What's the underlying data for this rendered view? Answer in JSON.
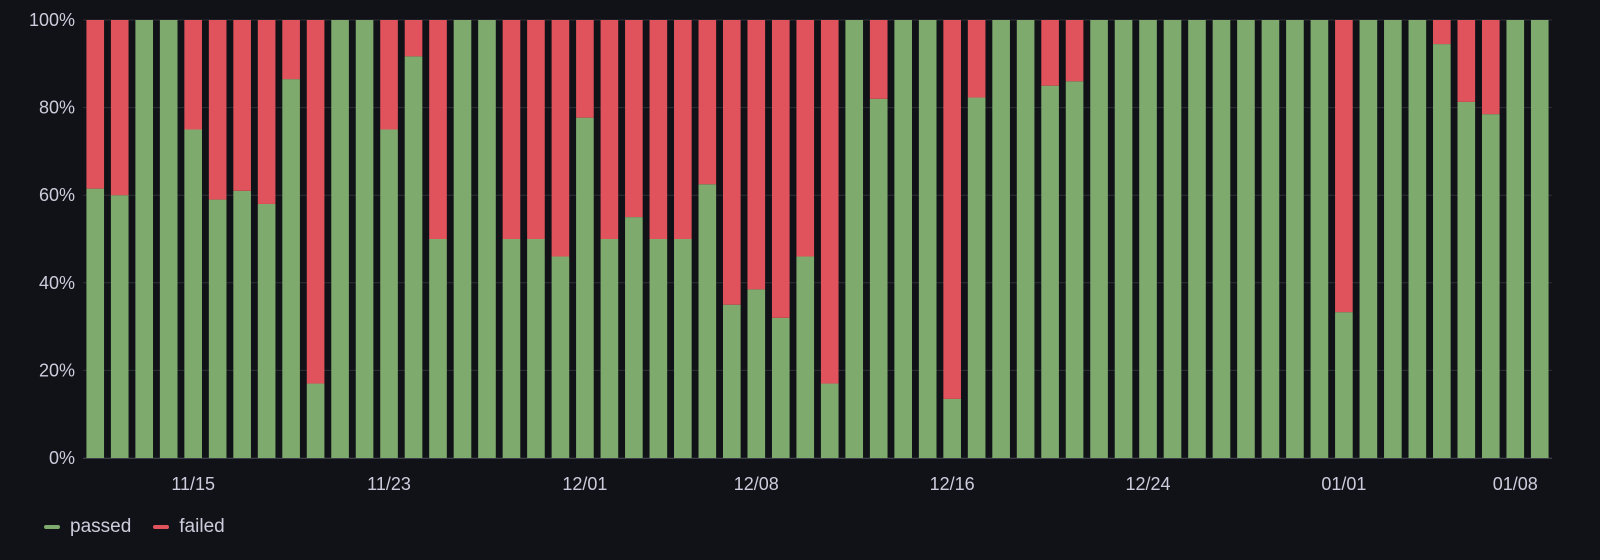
{
  "chart_data": {
    "type": "bar",
    "stacked": true,
    "ylim": [
      0,
      100
    ],
    "y_tick_labels": [
      "0%",
      "20%",
      "40%",
      "60%",
      "80%",
      "100%"
    ],
    "y_tick_values": [
      0,
      20,
      40,
      60,
      80,
      100
    ],
    "x_tick_labels": [
      "11/15",
      "11/23",
      "12/01",
      "12/08",
      "12/16",
      "12/24",
      "01/01",
      "01/08"
    ],
    "x_tick_at_bar": [
      4,
      12,
      20,
      27,
      35,
      43,
      51,
      58
    ],
    "grid": true,
    "legend_placement": "bottom-left",
    "series": [
      {
        "name": "passed",
        "color": "#7eaa6e",
        "values": [
          61.5,
          60,
          100,
          100,
          75,
          59,
          61,
          58,
          86.5,
          17,
          100,
          100,
          75,
          91.7,
          50,
          100,
          100,
          50,
          50,
          46,
          77.7,
          50,
          55,
          50,
          50,
          62.5,
          35,
          38.5,
          32,
          46,
          17,
          100,
          82,
          100,
          100,
          13.5,
          82.3,
          100,
          100,
          85,
          86,
          100,
          100,
          100,
          100,
          100,
          100,
          100,
          100,
          100,
          100,
          33.3,
          100,
          100,
          100,
          94.5,
          81.3,
          78.5,
          100,
          100
        ]
      },
      {
        "name": "failed",
        "color": "#e0535d",
        "values": [
          38.5,
          40,
          0,
          0,
          25,
          41,
          39,
          42,
          13.5,
          83,
          0,
          0,
          25,
          8.3,
          50,
          0,
          0,
          50,
          50,
          54,
          22.3,
          50,
          45,
          50,
          50,
          37.5,
          65,
          61.5,
          68,
          54,
          83,
          0,
          18,
          0,
          0,
          86.5,
          17.7,
          0,
          0,
          15,
          14,
          0,
          0,
          0,
          0,
          0,
          0,
          0,
          0,
          0,
          0,
          66.7,
          0,
          0,
          0,
          5.5,
          18.7,
          21.5,
          0,
          0
        ]
      }
    ]
  },
  "colors": {
    "background": "#111217",
    "grid": "#2c2f36",
    "text": "#ccccdc"
  },
  "legend": [
    {
      "label": "passed",
      "color": "#7eaa6e"
    },
    {
      "label": "failed",
      "color": "#e0535d"
    }
  ]
}
